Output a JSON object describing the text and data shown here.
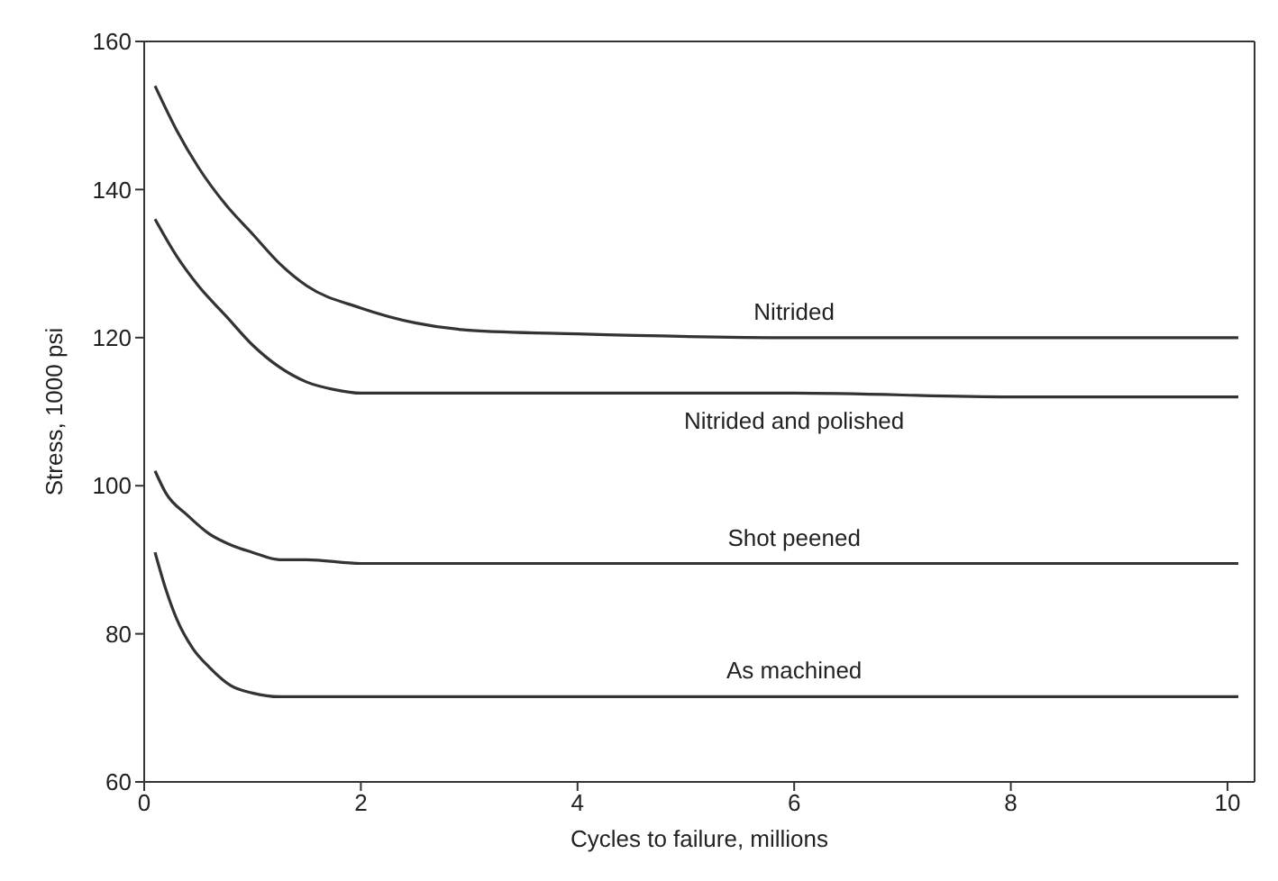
{
  "chart_data": {
    "type": "line",
    "xlabel": "Cycles to failure, millions",
    "ylabel": "Stress, 1000 psi",
    "xlim": [
      0,
      10.25
    ],
    "xticks": [
      0,
      2,
      4,
      6,
      8,
      10
    ],
    "ylim": [
      60,
      160
    ],
    "yticks": [
      60,
      80,
      100,
      120,
      140,
      160
    ],
    "grid": false,
    "legend": false,
    "marker": "none",
    "line_style": "solid",
    "series": [
      {
        "name": "Nitrided",
        "color": "#333333",
        "x": [
          0.1,
          0.3,
          0.5,
          0.75,
          1,
          1.25,
          1.5,
          2,
          2.5,
          3,
          4,
          6,
          8,
          10.1
        ],
        "values": [
          154,
          148,
          143,
          138,
          134,
          130,
          127,
          124,
          122,
          121,
          120.5,
          120,
          120,
          120
        ]
      },
      {
        "name": "Nitrided and polished",
        "color": "#333333",
        "x": [
          0.1,
          0.3,
          0.5,
          0.75,
          1,
          1.25,
          1.5,
          1.75,
          2,
          3,
          4,
          6,
          8,
          10.1
        ],
        "values": [
          136,
          131,
          127,
          123,
          119,
          116,
          114,
          113,
          112.5,
          112.5,
          112.5,
          112.5,
          112,
          112
        ]
      },
      {
        "name": "Shot peened",
        "color": "#333333",
        "x": [
          0.1,
          0.2,
          0.4,
          0.6,
          0.8,
          1,
          1.25,
          1.5,
          2,
          4,
          6,
          8,
          10.1
        ],
        "values": [
          102,
          99,
          96,
          93.5,
          92,
          91,
          90,
          90,
          89.5,
          89.5,
          89.5,
          89.5,
          89.5
        ]
      },
      {
        "name": "As machined",
        "color": "#333333",
        "x": [
          0.1,
          0.2,
          0.3,
          0.45,
          0.6,
          0.8,
          1,
          1.25,
          1.5,
          2,
          4,
          6,
          8,
          10.1
        ],
        "values": [
          91,
          86,
          82,
          78,
          75.5,
          73,
          72,
          71.5,
          71.5,
          71.5,
          71.5,
          71.5,
          71.5,
          71.5
        ]
      }
    ]
  }
}
